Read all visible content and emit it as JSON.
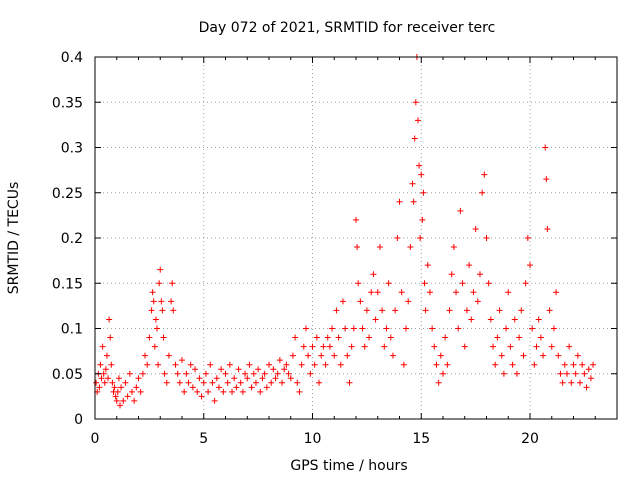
{
  "chart_data": {
    "type": "scatter",
    "title": "Day 072 of 2021, SRMTID for receiver terc",
    "xlabel": "GPS time / hours",
    "ylabel": "SRMTID / TECUs",
    "xlim": [
      0,
      24
    ],
    "ylim": [
      0,
      0.4
    ],
    "x_ticks": [
      "0",
      "5",
      "10",
      "15",
      "20"
    ],
    "y_ticks": [
      "0",
      "0.05",
      "0.1",
      "0.15",
      "0.2",
      "0.25",
      "0.3",
      "0.35",
      "0.4"
    ],
    "x_tick_values": [
      0,
      5,
      10,
      15,
      20
    ],
    "y_tick_values": [
      0,
      0.05,
      0.1,
      0.15,
      0.2,
      0.25,
      0.3,
      0.35,
      0.4
    ],
    "grid": true,
    "marker": "+",
    "series": [
      {
        "name": "SRMTID",
        "color": "#ff0000",
        "points": [
          [
            0.05,
            0.04
          ],
          [
            0.1,
            0.03
          ],
          [
            0.15,
            0.05
          ],
          [
            0.2,
            0.035
          ],
          [
            0.25,
            0.06
          ],
          [
            0.3,
            0.045
          ],
          [
            0.35,
            0.08
          ],
          [
            0.4,
            0.05
          ],
          [
            0.45,
            0.04
          ],
          [
            0.5,
            0.055
          ],
          [
            0.55,
            0.07
          ],
          [
            0.6,
            0.045
          ],
          [
            0.65,
            0.11
          ],
          [
            0.7,
            0.09
          ],
          [
            0.75,
            0.06
          ],
          [
            0.8,
            0.04
          ],
          [
            0.85,
            0.03
          ],
          [
            0.9,
            0.035
          ],
          [
            0.95,
            0.025
          ],
          [
            1.0,
            0.02
          ],
          [
            1.05,
            0.03
          ],
          [
            1.1,
            0.045
          ],
          [
            1.15,
            0.015
          ],
          [
            1.2,
            0.035
          ],
          [
            1.3,
            0.02
          ],
          [
            1.4,
            0.04
          ],
          [
            1.5,
            0.025
          ],
          [
            1.6,
            0.05
          ],
          [
            1.7,
            0.03
          ],
          [
            1.8,
            0.02
          ],
          [
            1.9,
            0.035
          ],
          [
            2.0,
            0.045
          ],
          [
            2.1,
            0.03
          ],
          [
            2.2,
            0.05
          ],
          [
            2.3,
            0.07
          ],
          [
            2.4,
            0.06
          ],
          [
            2.5,
            0.09
          ],
          [
            2.6,
            0.12
          ],
          [
            2.65,
            0.14
          ],
          [
            2.7,
            0.13
          ],
          [
            2.75,
            0.08
          ],
          [
            2.8,
            0.11
          ],
          [
            2.85,
            0.1
          ],
          [
            2.9,
            0.06
          ],
          [
            2.95,
            0.15
          ],
          [
            3.0,
            0.165
          ],
          [
            3.05,
            0.13
          ],
          [
            3.1,
            0.12
          ],
          [
            3.15,
            0.09
          ],
          [
            3.2,
            0.05
          ],
          [
            3.3,
            0.04
          ],
          [
            3.4,
            0.07
          ],
          [
            3.5,
            0.13
          ],
          [
            3.55,
            0.15
          ],
          [
            3.6,
            0.12
          ],
          [
            3.7,
            0.06
          ],
          [
            3.8,
            0.05
          ],
          [
            3.9,
            0.04
          ],
          [
            4.0,
            0.065
          ],
          [
            4.1,
            0.03
          ],
          [
            4.2,
            0.05
          ],
          [
            4.3,
            0.04
          ],
          [
            4.4,
            0.06
          ],
          [
            4.5,
            0.035
          ],
          [
            4.6,
            0.055
          ],
          [
            4.7,
            0.03
          ],
          [
            4.8,
            0.045
          ],
          [
            4.9,
            0.025
          ],
          [
            5.0,
            0.04
          ],
          [
            5.1,
            0.05
          ],
          [
            5.2,
            0.03
          ],
          [
            5.3,
            0.06
          ],
          [
            5.4,
            0.04
          ],
          [
            5.5,
            0.02
          ],
          [
            5.6,
            0.045
          ],
          [
            5.7,
            0.035
          ],
          [
            5.8,
            0.055
          ],
          [
            5.9,
            0.03
          ],
          [
            6.0,
            0.05
          ],
          [
            6.1,
            0.04
          ],
          [
            6.2,
            0.06
          ],
          [
            6.3,
            0.03
          ],
          [
            6.4,
            0.045
          ],
          [
            6.5,
            0.035
          ],
          [
            6.6,
            0.055
          ],
          [
            6.7,
            0.04
          ],
          [
            6.8,
            0.03
          ],
          [
            6.9,
            0.05
          ],
          [
            7.0,
            0.045
          ],
          [
            7.1,
            0.06
          ],
          [
            7.2,
            0.035
          ],
          [
            7.3,
            0.05
          ],
          [
            7.4,
            0.04
          ],
          [
            7.5,
            0.055
          ],
          [
            7.6,
            0.03
          ],
          [
            7.7,
            0.045
          ],
          [
            7.8,
            0.05
          ],
          [
            7.9,
            0.035
          ],
          [
            8.0,
            0.06
          ],
          [
            8.1,
            0.04
          ],
          [
            8.2,
            0.055
          ],
          [
            8.3,
            0.045
          ],
          [
            8.4,
            0.05
          ],
          [
            8.5,
            0.065
          ],
          [
            8.6,
            0.04
          ],
          [
            8.7,
            0.055
          ],
          [
            8.8,
            0.06
          ],
          [
            8.9,
            0.05
          ],
          [
            9.0,
            0.045
          ],
          [
            9.1,
            0.07
          ],
          [
            9.2,
            0.09
          ],
          [
            9.3,
            0.04
          ],
          [
            9.4,
            0.03
          ],
          [
            9.5,
            0.06
          ],
          [
            9.6,
            0.08
          ],
          [
            9.7,
            0.1
          ],
          [
            9.8,
            0.07
          ],
          [
            9.9,
            0.05
          ],
          [
            10.0,
            0.08
          ],
          [
            10.1,
            0.06
          ],
          [
            10.2,
            0.09
          ],
          [
            10.3,
            0.04
          ],
          [
            10.4,
            0.07
          ],
          [
            10.5,
            0.08
          ],
          [
            10.6,
            0.06
          ],
          [
            10.7,
            0.09
          ],
          [
            10.8,
            0.08
          ],
          [
            10.9,
            0.1
          ],
          [
            11.0,
            0.07
          ],
          [
            11.1,
            0.12
          ],
          [
            11.2,
            0.09
          ],
          [
            11.3,
            0.06
          ],
          [
            11.4,
            0.13
          ],
          [
            11.5,
            0.1
          ],
          [
            11.6,
            0.07
          ],
          [
            11.7,
            0.04
          ],
          [
            11.8,
            0.08
          ],
          [
            11.9,
            0.1
          ],
          [
            12.0,
            0.22
          ],
          [
            12.05,
            0.19
          ],
          [
            12.1,
            0.15
          ],
          [
            12.2,
            0.13
          ],
          [
            12.3,
            0.1
          ],
          [
            12.4,
            0.08
          ],
          [
            12.5,
            0.12
          ],
          [
            12.6,
            0.09
          ],
          [
            12.7,
            0.14
          ],
          [
            12.8,
            0.16
          ],
          [
            12.9,
            0.11
          ],
          [
            13.0,
            0.14
          ],
          [
            13.1,
            0.19
          ],
          [
            13.2,
            0.12
          ],
          [
            13.3,
            0.08
          ],
          [
            13.4,
            0.1
          ],
          [
            13.5,
            0.15
          ],
          [
            13.6,
            0.09
          ],
          [
            13.7,
            0.07
          ],
          [
            13.8,
            0.12
          ],
          [
            13.9,
            0.2
          ],
          [
            14.0,
            0.24
          ],
          [
            14.1,
            0.14
          ],
          [
            14.2,
            0.06
          ],
          [
            14.3,
            0.1
          ],
          [
            14.4,
            0.13
          ],
          [
            14.5,
            0.19
          ],
          [
            14.6,
            0.26
          ],
          [
            14.65,
            0.24
          ],
          [
            14.7,
            0.31
          ],
          [
            14.75,
            0.35
          ],
          [
            14.8,
            0.4
          ],
          [
            14.85,
            0.33
          ],
          [
            14.9,
            0.28
          ],
          [
            14.95,
            0.2
          ],
          [
            15.0,
            0.27
          ],
          [
            15.05,
            0.22
          ],
          [
            15.1,
            0.25
          ],
          [
            15.15,
            0.15
          ],
          [
            15.2,
            0.12
          ],
          [
            15.3,
            0.17
          ],
          [
            15.4,
            0.14
          ],
          [
            15.5,
            0.1
          ],
          [
            15.6,
            0.08
          ],
          [
            15.7,
            0.06
          ],
          [
            15.8,
            0.04
          ],
          [
            15.9,
            0.07
          ],
          [
            16.0,
            0.05
          ],
          [
            16.1,
            0.09
          ],
          [
            16.2,
            0.06
          ],
          [
            16.3,
            0.12
          ],
          [
            16.4,
            0.16
          ],
          [
            16.5,
            0.19
          ],
          [
            16.6,
            0.14
          ],
          [
            16.7,
            0.1
          ],
          [
            16.8,
            0.23
          ],
          [
            16.9,
            0.15
          ],
          [
            17.0,
            0.08
          ],
          [
            17.1,
            0.12
          ],
          [
            17.2,
            0.17
          ],
          [
            17.3,
            0.11
          ],
          [
            17.4,
            0.14
          ],
          [
            17.5,
            0.21
          ],
          [
            17.6,
            0.13
          ],
          [
            17.7,
            0.16
          ],
          [
            17.8,
            0.25
          ],
          [
            17.9,
            0.27
          ],
          [
            18.0,
            0.2
          ],
          [
            18.1,
            0.15
          ],
          [
            18.2,
            0.11
          ],
          [
            18.3,
            0.08
          ],
          [
            18.4,
            0.06
          ],
          [
            18.5,
            0.09
          ],
          [
            18.6,
            0.12
          ],
          [
            18.7,
            0.07
          ],
          [
            18.8,
            0.05
          ],
          [
            18.9,
            0.1
          ],
          [
            19.0,
            0.14
          ],
          [
            19.1,
            0.08
          ],
          [
            19.2,
            0.06
          ],
          [
            19.3,
            0.11
          ],
          [
            19.4,
            0.05
          ],
          [
            19.5,
            0.09
          ],
          [
            19.6,
            0.12
          ],
          [
            19.7,
            0.07
          ],
          [
            19.8,
            0.15
          ],
          [
            19.9,
            0.2
          ],
          [
            20.0,
            0.17
          ],
          [
            20.1,
            0.1
          ],
          [
            20.2,
            0.06
          ],
          [
            20.3,
            0.08
          ],
          [
            20.4,
            0.11
          ],
          [
            20.5,
            0.09
          ],
          [
            20.6,
            0.07
          ],
          [
            20.7,
            0.3
          ],
          [
            20.75,
            0.265
          ],
          [
            20.8,
            0.21
          ],
          [
            20.9,
            0.12
          ],
          [
            21.0,
            0.08
          ],
          [
            21.1,
            0.1
          ],
          [
            21.2,
            0.14
          ],
          [
            21.3,
            0.07
          ],
          [
            21.4,
            0.05
          ],
          [
            21.5,
            0.04
          ],
          [
            21.6,
            0.06
          ],
          [
            21.7,
            0.05
          ],
          [
            21.8,
            0.08
          ],
          [
            21.9,
            0.04
          ],
          [
            22.0,
            0.06
          ],
          [
            22.1,
            0.05
          ],
          [
            22.2,
            0.07
          ],
          [
            22.3,
            0.04
          ],
          [
            22.4,
            0.06
          ],
          [
            22.5,
            0.05
          ],
          [
            22.6,
            0.035
          ],
          [
            22.7,
            0.055
          ],
          [
            22.8,
            0.045
          ],
          [
            22.9,
            0.06
          ]
        ]
      }
    ]
  }
}
